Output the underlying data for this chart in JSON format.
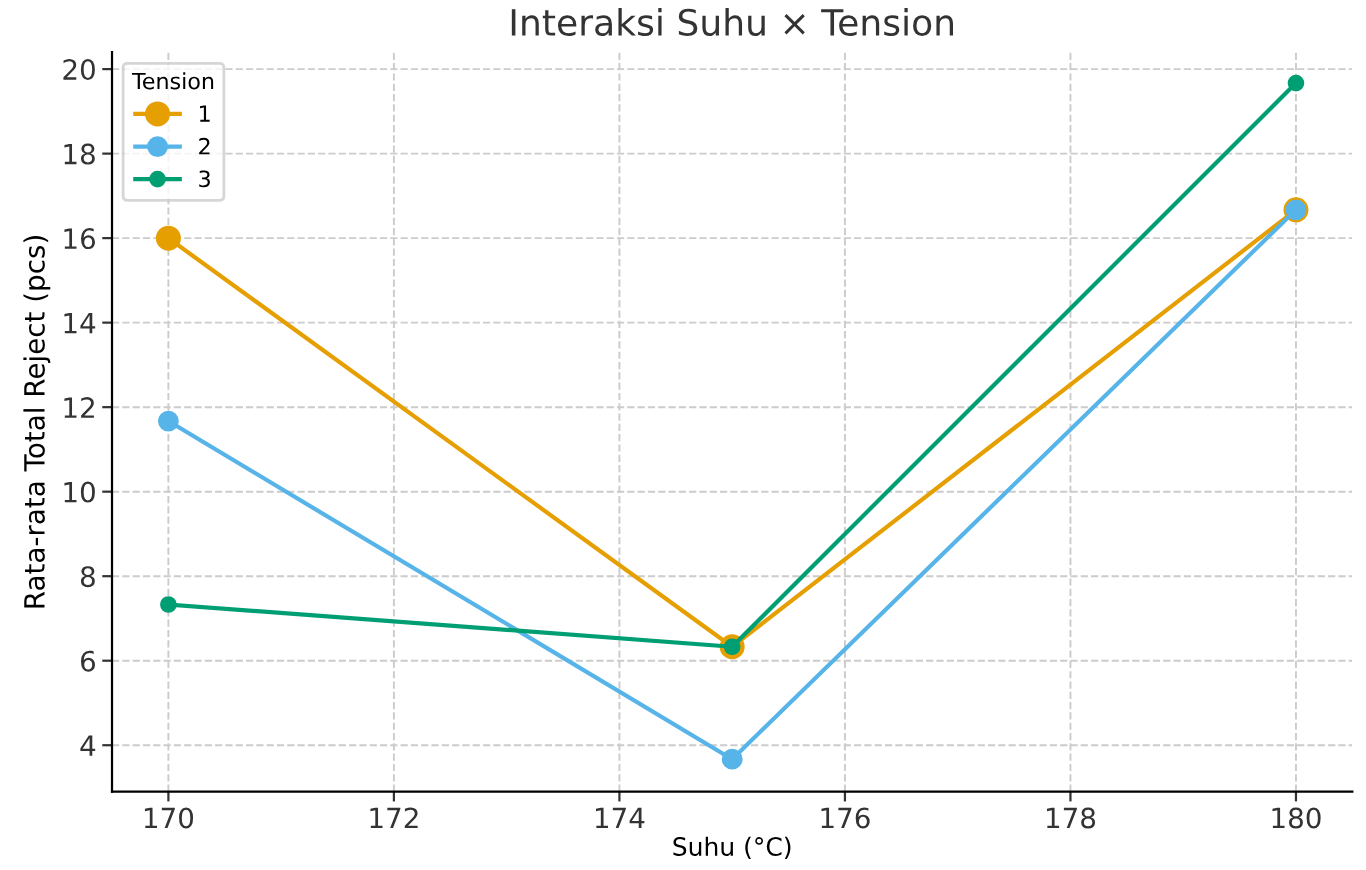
{
  "chart_data": {
    "type": "line",
    "title": "Interaksi Suhu × Tension",
    "xlabel": "Suhu (°C)",
    "ylabel": "Rata-rata Total Reject (pcs)",
    "legend_title": "Tension",
    "x": [
      170,
      175,
      180
    ],
    "series": [
      {
        "name": "1",
        "color": "#e69f00",
        "values": [
          16.0,
          6.33,
          16.67
        ]
      },
      {
        "name": "2",
        "color": "#56b4e9",
        "values": [
          11.67,
          3.67,
          16.67
        ]
      },
      {
        "name": "3",
        "color": "#009e73",
        "values": [
          7.33,
          6.33,
          19.67
        ]
      }
    ],
    "xlim": [
      169.5,
      180.5
    ],
    "ylim": [
      2.9,
      20.4
    ],
    "xticks": [
      170,
      172,
      174,
      176,
      178,
      180
    ],
    "yticks": [
      4,
      6,
      8,
      10,
      12,
      14,
      16,
      18,
      20
    ],
    "grid": true,
    "legend": "top left",
    "marker": "circle",
    "line_style": "solid"
  }
}
